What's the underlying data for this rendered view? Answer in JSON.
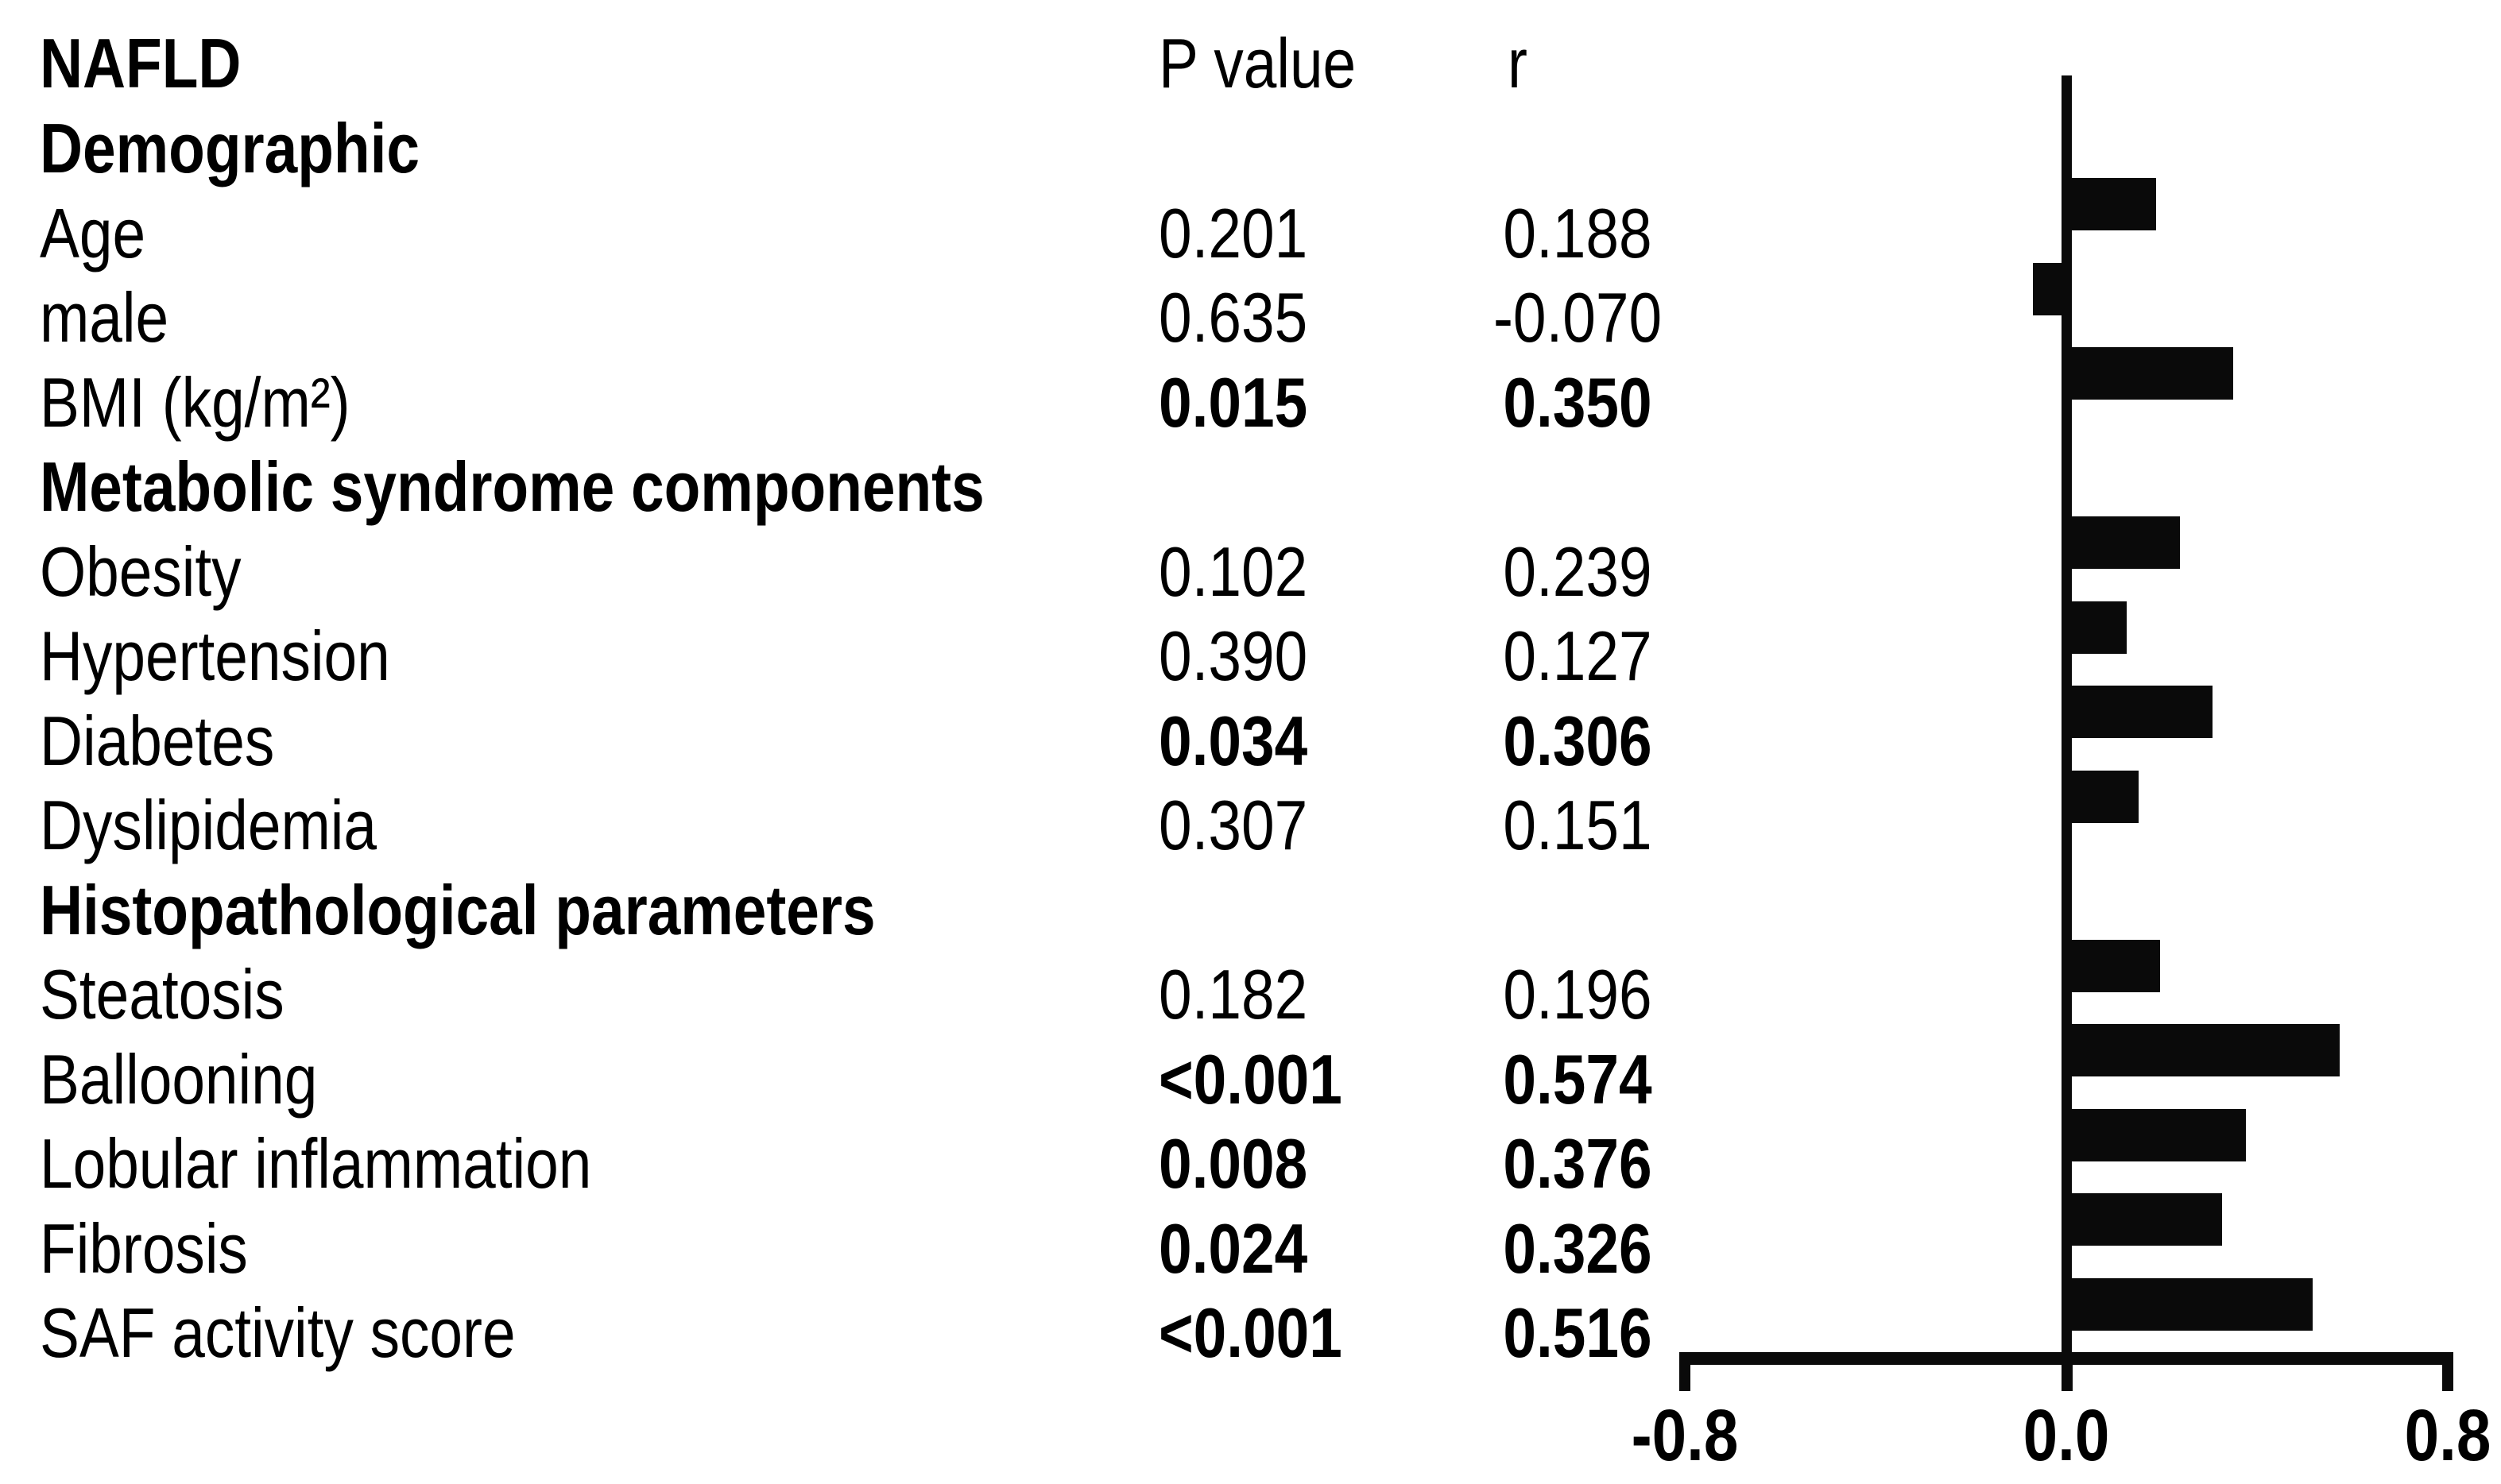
{
  "header": {
    "title": "NAFLD",
    "p_col": "P value",
    "r_col": "r"
  },
  "table": {
    "rows": [
      {
        "label": "Demographic",
        "section": true
      },
      {
        "label": "Age",
        "p": "0.201",
        "r": "0.188",
        "r_value": 0.188,
        "significant": false
      },
      {
        "label": "male",
        "p": "0.635",
        "r": "-0.070",
        "r_value": -0.07,
        "significant": false
      },
      {
        "label": "BMI (kg/m²)",
        "p": "0.015",
        "r": "0.350",
        "r_value": 0.35,
        "significant": true
      },
      {
        "label": "Metabolic syndrome components",
        "section": true
      },
      {
        "label": "Obesity",
        "p": "0.102",
        "r": "0.239",
        "r_value": 0.239,
        "significant": false
      },
      {
        "label": "Hypertension",
        "p": "0.390",
        "r": "0.127",
        "r_value": 0.127,
        "significant": false
      },
      {
        "label": "Diabetes",
        "p": "0.034",
        "r": "0.306",
        "r_value": 0.306,
        "significant": true
      },
      {
        "label": "Dyslipidemia",
        "p": "0.307",
        "r": "0.151",
        "r_value": 0.151,
        "significant": false
      },
      {
        "label": "Histopathological parameters",
        "section": true
      },
      {
        "label": "Steatosis",
        "p": "0.182",
        "r": "0.196",
        "r_value": 0.196,
        "significant": false
      },
      {
        "label": "Ballooning",
        "p": "<0.001",
        "r": "0.574",
        "r_value": 0.574,
        "significant": true
      },
      {
        "label": "Lobular inflammation",
        "p": "0.008",
        "r": "0.376",
        "r_value": 0.376,
        "significant": true
      },
      {
        "label": "Fibrosis",
        "p": "0.024",
        "r": "0.326",
        "r_value": 0.326,
        "significant": true
      },
      {
        "label": "SAF activity score",
        "p": "<0.001",
        "r": "0.516",
        "r_value": 0.516,
        "significant": true
      }
    ]
  },
  "chart_data": {
    "type": "bar",
    "orientation": "horizontal",
    "series_name": "r",
    "categories": [
      "Age",
      "male",
      "BMI (kg/m²)",
      "Obesity",
      "Hypertension",
      "Diabetes",
      "Dyslipidemia",
      "Steatosis",
      "Ballooning",
      "Lobular inflammation",
      "Fibrosis",
      "SAF activity score"
    ],
    "values": [
      0.188,
      -0.07,
      0.35,
      0.239,
      0.127,
      0.306,
      0.151,
      0.196,
      0.574,
      0.376,
      0.326,
      0.516
    ],
    "xlim": [
      -0.8,
      0.8
    ],
    "tick_labels": [
      "-0.8",
      "0.0",
      "0.8"
    ],
    "grid": false,
    "legend": false,
    "bar_color": "#0a0a0a",
    "axis_color": "#0a0a0a"
  }
}
